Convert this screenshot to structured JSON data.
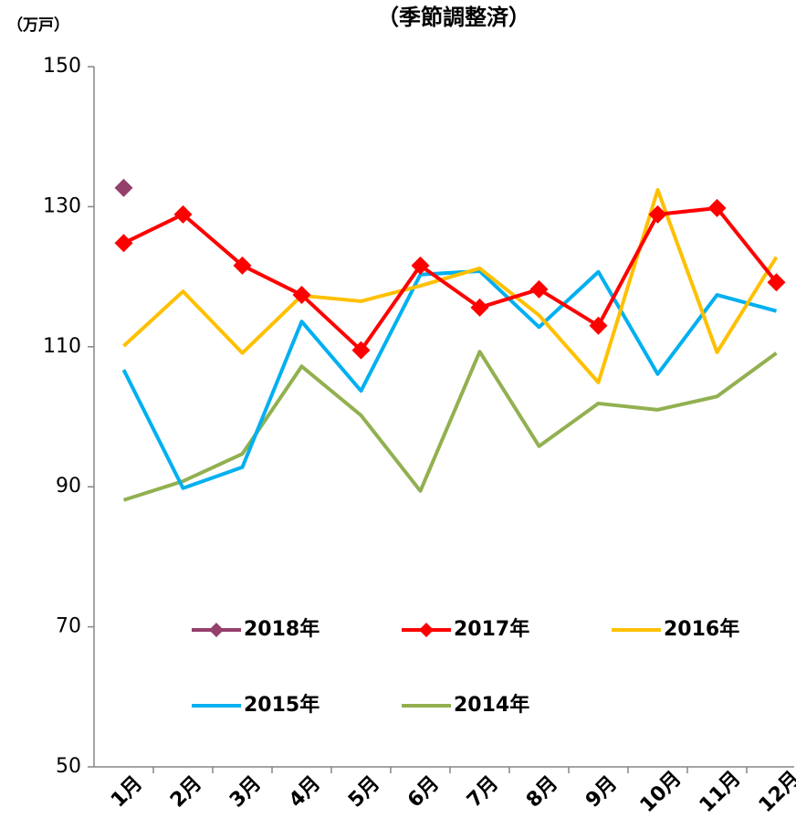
{
  "chart_data": {
    "type": "line",
    "title": "（季節調整済）",
    "y_label": "（万戸）",
    "categories": [
      "1月",
      "2月",
      "3月",
      "4月",
      "5月",
      "6月",
      "7月",
      "8月",
      "9月",
      "10月",
      "11月",
      "12月"
    ],
    "series": [
      {
        "name": "2018年",
        "color": "#953f6b",
        "marker": "diamond",
        "values": [
          132.7,
          null,
          null,
          null,
          null,
          null,
          null,
          null,
          null,
          null,
          null,
          null
        ]
      },
      {
        "name": "2017年",
        "color": "#ff0000",
        "marker": "diamond",
        "values": [
          124.8,
          128.9,
          121.6,
          117.4,
          109.5,
          121.6,
          115.6,
          118.2,
          113.0,
          128.9,
          129.8,
          119.2
        ]
      },
      {
        "name": "2016年",
        "color": "#ffc000",
        "values": [
          110.1,
          117.9,
          109.1,
          117.3,
          116.5,
          118.7,
          121.2,
          114.5,
          104.9,
          132.4,
          109.2,
          122.8
        ]
      },
      {
        "name": "2015年",
        "color": "#00b0f0",
        "values": [
          106.7,
          89.8,
          92.8,
          113.6,
          103.7,
          120.3,
          120.8,
          112.8,
          120.7,
          106.1,
          117.4,
          115.1
        ]
      },
      {
        "name": "2014年",
        "color": "#92b050",
        "values": [
          88.1,
          90.8,
          94.7,
          107.2,
          100.2,
          89.4,
          109.3,
          95.8,
          101.9,
          101.0,
          102.9,
          109.1
        ]
      }
    ],
    "ylim": [
      50,
      150
    ],
    "yticks": [
      50,
      70,
      90,
      110,
      130,
      150
    ]
  }
}
